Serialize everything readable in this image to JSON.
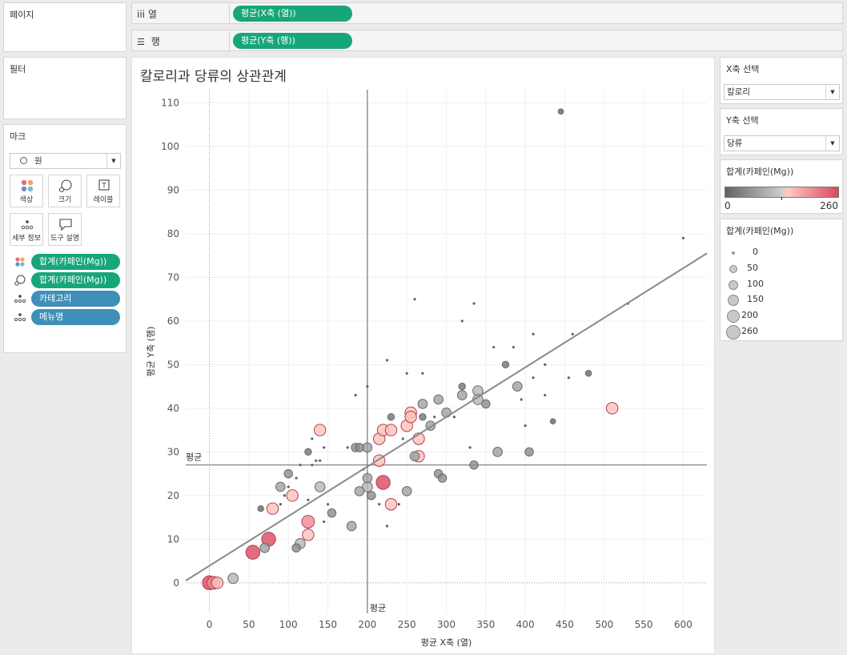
{
  "panels": {
    "pages_title": "페이지",
    "filter_title": "필터",
    "marks_title": "마크"
  },
  "shelves": {
    "columns": {
      "label": "iii 열",
      "pill": "평균(X축 (열))"
    },
    "rows": {
      "label": "행",
      "pill": "평균(Y축 (행))"
    }
  },
  "marks": {
    "mark_type": "원",
    "buttons": {
      "color": "색상",
      "size": "크기",
      "label": "레이블",
      "detail": "세부 정보",
      "tooltip": "도구 설명"
    },
    "fields": [
      {
        "icon": "color-dots-icon",
        "name": "합계(카페인(Mg))",
        "color": "#17a67a"
      },
      {
        "icon": "size-icon",
        "name": "합계(카페인(Mg))",
        "color": "#17a67a"
      },
      {
        "icon": "detail-icon",
        "name": "카테고리",
        "color": "#3e90b8"
      },
      {
        "icon": "detail-icon",
        "name": "메뉴명",
        "color": "#3e90b8"
      }
    ]
  },
  "params": {
    "x_title": "X축 선택",
    "x_value": "칼로리",
    "y_title": "Y축 선택",
    "y_value": "당류"
  },
  "color_legend": {
    "title": "합계(카페인(Mg))",
    "min": "0",
    "max": "260",
    "colors": [
      "#5f6368",
      "#c9c9c9",
      "#ffcabf",
      "#d9485f"
    ]
  },
  "size_legend": {
    "title": "합계(카페인(Mg))",
    "items": [
      "0",
      "50",
      "100",
      "150",
      "200",
      "260"
    ]
  },
  "chart_data": {
    "type": "scatter",
    "title": "칼로리과 당류의 상관관계",
    "xlabel": "평균 X축 (열)",
    "ylabel": "평균 Y축 (행)",
    "xlim": [
      -30,
      630
    ],
    "ylim": [
      -7,
      113
    ],
    "xticks": [
      0,
      50,
      100,
      150,
      200,
      250,
      300,
      350,
      400,
      450,
      500,
      550,
      600
    ],
    "yticks": [
      0,
      10,
      20,
      30,
      40,
      50,
      60,
      70,
      80,
      90,
      100,
      110
    ],
    "reference_lines": {
      "x_mean": 200,
      "y_mean": 27,
      "label": "평균"
    },
    "trend_line": {
      "x": [
        -30,
        630
      ],
      "y": [
        0.5,
        75.5
      ]
    },
    "size_field": "합계(카페인(Mg))",
    "color_field": "합계(카페인(Mg))",
    "points": [
      {
        "x": 0,
        "y": 0,
        "c": 260
      },
      {
        "x": 5,
        "y": 0,
        "c": 200
      },
      {
        "x": 10,
        "y": 0,
        "c": 150
      },
      {
        "x": 30,
        "y": 1,
        "c": 100
      },
      {
        "x": 55,
        "y": 7,
        "c": 260
      },
      {
        "x": 75,
        "y": 10,
        "c": 260
      },
      {
        "x": 70,
        "y": 8,
        "c": 75
      },
      {
        "x": 65,
        "y": 17,
        "c": 10
      },
      {
        "x": 80,
        "y": 17,
        "c": 150
      },
      {
        "x": 90,
        "y": 22,
        "c": 75
      },
      {
        "x": 100,
        "y": 25,
        "c": 50
      },
      {
        "x": 105,
        "y": 20,
        "c": 150
      },
      {
        "x": 110,
        "y": 8,
        "c": 50
      },
      {
        "x": 115,
        "y": 9,
        "c": 100
      },
      {
        "x": 125,
        "y": 14,
        "c": 200
      },
      {
        "x": 125,
        "y": 11,
        "c": 150
      },
      {
        "x": 125,
        "y": 30,
        "c": 20
      },
      {
        "x": 140,
        "y": 35,
        "c": 150
      },
      {
        "x": 140,
        "y": 22,
        "c": 100
      },
      {
        "x": 155,
        "y": 16,
        "c": 50
      },
      {
        "x": 180,
        "y": 13,
        "c": 75
      },
      {
        "x": 185,
        "y": 31,
        "c": 50
      },
      {
        "x": 190,
        "y": 31,
        "c": 50
      },
      {
        "x": 190,
        "y": 21,
        "c": 75
      },
      {
        "x": 200,
        "y": 31,
        "c": 75
      },
      {
        "x": 200,
        "y": 24,
        "c": 75
      },
      {
        "x": 200,
        "y": 22,
        "c": 100
      },
      {
        "x": 205,
        "y": 20,
        "c": 50
      },
      {
        "x": 215,
        "y": 28,
        "c": 150
      },
      {
        "x": 215,
        "y": 33,
        "c": 150
      },
      {
        "x": 220,
        "y": 35,
        "c": 150
      },
      {
        "x": 220,
        "y": 23,
        "c": 260
      },
      {
        "x": 230,
        "y": 18,
        "c": 150
      },
      {
        "x": 230,
        "y": 35,
        "c": 150
      },
      {
        "x": 230,
        "y": 38,
        "c": 20
      },
      {
        "x": 250,
        "y": 21,
        "c": 75
      },
      {
        "x": 250,
        "y": 36,
        "c": 150
      },
      {
        "x": 255,
        "y": 39,
        "c": 150
      },
      {
        "x": 255,
        "y": 38,
        "c": 150
      },
      {
        "x": 260,
        "y": 29,
        "c": 75
      },
      {
        "x": 265,
        "y": 29,
        "c": 150
      },
      {
        "x": 265,
        "y": 33,
        "c": 150
      },
      {
        "x": 270,
        "y": 41,
        "c": 75
      },
      {
        "x": 270,
        "y": 38,
        "c": 20
      },
      {
        "x": 280,
        "y": 36,
        "c": 75
      },
      {
        "x": 290,
        "y": 42,
        "c": 75
      },
      {
        "x": 290,
        "y": 25,
        "c": 50
      },
      {
        "x": 295,
        "y": 24,
        "c": 50
      },
      {
        "x": 300,
        "y": 39,
        "c": 75
      },
      {
        "x": 320,
        "y": 43,
        "c": 75
      },
      {
        "x": 320,
        "y": 45,
        "c": 20
      },
      {
        "x": 335,
        "y": 27,
        "c": 50
      },
      {
        "x": 340,
        "y": 44,
        "c": 100
      },
      {
        "x": 340,
        "y": 42,
        "c": 100
      },
      {
        "x": 350,
        "y": 41,
        "c": 50
      },
      {
        "x": 365,
        "y": 30,
        "c": 75
      },
      {
        "x": 375,
        "y": 50,
        "c": 20
      },
      {
        "x": 390,
        "y": 45,
        "c": 75
      },
      {
        "x": 405,
        "y": 30,
        "c": 50
      },
      {
        "x": 435,
        "y": 37,
        "c": 5
      },
      {
        "x": 445,
        "y": 108,
        "c": 5
      },
      {
        "x": 480,
        "y": 48,
        "c": 10
      },
      {
        "x": 510,
        "y": 40,
        "c": 150
      },
      {
        "x": 600,
        "y": 79,
        "c": 0
      },
      {
        "x": 530,
        "y": 64,
        "c": 0
      },
      {
        "x": 460,
        "y": 57,
        "c": 0
      },
      {
        "x": 410,
        "y": 57,
        "c": 0
      },
      {
        "x": 385,
        "y": 54,
        "c": 0
      },
      {
        "x": 360,
        "y": 54,
        "c": 0
      },
      {
        "x": 335,
        "y": 64,
        "c": 0
      },
      {
        "x": 320,
        "y": 60,
        "c": 0
      },
      {
        "x": 260,
        "y": 65,
        "c": 0
      },
      {
        "x": 225,
        "y": 51,
        "c": 0
      },
      {
        "x": 250,
        "y": 48,
        "c": 0
      },
      {
        "x": 270,
        "y": 48,
        "c": 0
      },
      {
        "x": 200,
        "y": 45,
        "c": 0
      },
      {
        "x": 185,
        "y": 43,
        "c": 0
      },
      {
        "x": 425,
        "y": 50,
        "c": 0
      },
      {
        "x": 425,
        "y": 43,
        "c": 0
      },
      {
        "x": 455,
        "y": 47,
        "c": 0
      },
      {
        "x": 400,
        "y": 36,
        "c": 0
      },
      {
        "x": 395,
        "y": 42,
        "c": 0
      },
      {
        "x": 410,
        "y": 47,
        "c": 0
      },
      {
        "x": 330,
        "y": 31,
        "c": 0
      },
      {
        "x": 310,
        "y": 38,
        "c": 0
      },
      {
        "x": 285,
        "y": 38,
        "c": 0
      },
      {
        "x": 245,
        "y": 33,
        "c": 0
      },
      {
        "x": 240,
        "y": 18,
        "c": 0
      },
      {
        "x": 225,
        "y": 13,
        "c": 0
      },
      {
        "x": 215,
        "y": 18,
        "c": 0
      },
      {
        "x": 195,
        "y": 26,
        "c": 0
      },
      {
        "x": 175,
        "y": 31,
        "c": 0
      },
      {
        "x": 150,
        "y": 18,
        "c": 0
      },
      {
        "x": 145,
        "y": 31,
        "c": 0
      },
      {
        "x": 145,
        "y": 14,
        "c": 0
      },
      {
        "x": 135,
        "y": 28,
        "c": 0
      },
      {
        "x": 130,
        "y": 27,
        "c": 0
      },
      {
        "x": 130,
        "y": 33,
        "c": 0
      },
      {
        "x": 115,
        "y": 27,
        "c": 0
      },
      {
        "x": 110,
        "y": 24,
        "c": 0
      },
      {
        "x": 100,
        "y": 22,
        "c": 0
      },
      {
        "x": 95,
        "y": 20,
        "c": 0
      },
      {
        "x": 90,
        "y": 18,
        "c": 0
      },
      {
        "x": 125,
        "y": 19,
        "c": 0
      },
      {
        "x": 140,
        "y": 28,
        "c": 0
      }
    ]
  }
}
